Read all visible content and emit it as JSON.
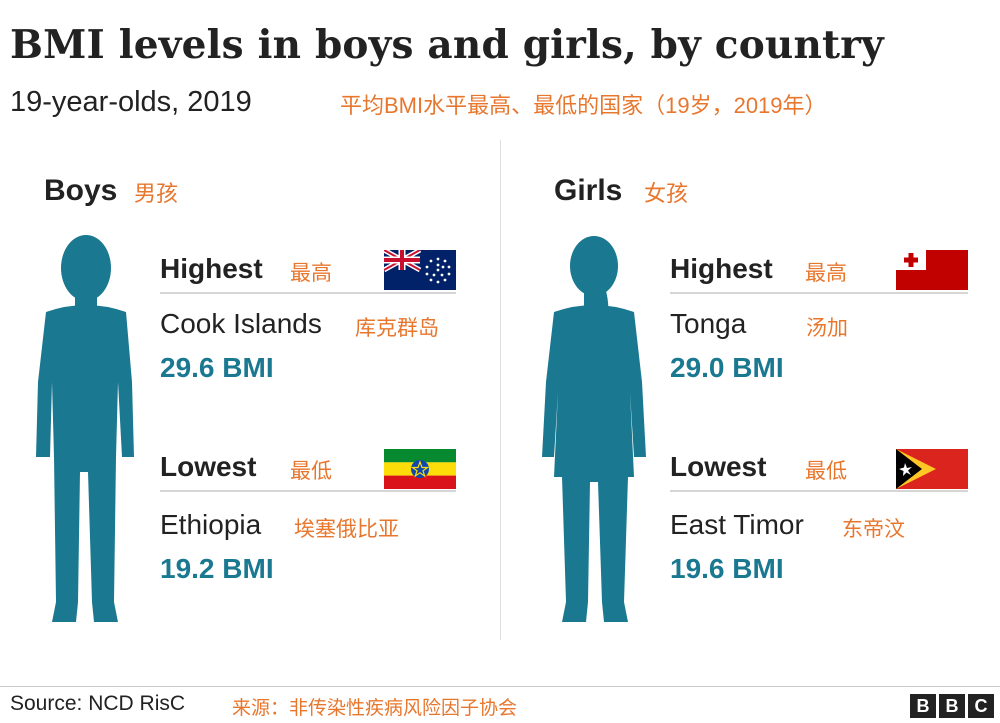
{
  "header": {
    "title": "BMI levels in boys and girls, by country",
    "subtitle": "19-year-olds, 2019",
    "subtitle_zh": "平均BMI水平最高、最低的国家（19岁，2019年）"
  },
  "colors": {
    "accent": "#e8772e",
    "value": "#1b7891",
    "silhouette": "#1b7891"
  },
  "chart_data": {
    "type": "table",
    "groups": [
      {
        "name": "Boys",
        "name_zh": "男孩",
        "highest": {
          "label": "Highest",
          "label_zh": "最高",
          "country": "Cook Islands",
          "country_zh": "库克群岛",
          "value": 29.6,
          "display": "29.6 BMI",
          "flag": "cook-islands-flag"
        },
        "lowest": {
          "label": "Lowest",
          "label_zh": "最低",
          "country": "Ethiopia",
          "country_zh": "埃塞俄比亚",
          "value": 19.2,
          "display": "19.2 BMI",
          "flag": "ethiopia-flag"
        }
      },
      {
        "name": "Girls",
        "name_zh": "女孩",
        "highest": {
          "label": "Highest",
          "label_zh": "最高",
          "country": "Tonga",
          "country_zh": "汤加",
          "value": 29.0,
          "display": "29.0 BMI",
          "flag": "tonga-flag"
        },
        "lowest": {
          "label": "Lowest",
          "label_zh": "最低",
          "country": "East Timor",
          "country_zh": "东帝汶",
          "value": 19.6,
          "display": "19.6 BMI",
          "flag": "east-timor-flag"
        }
      }
    ]
  },
  "footer": {
    "source": "Source: NCD RisC",
    "source_zh": "来源：非传染性疾病风险因子协会",
    "logo": [
      "B",
      "B",
      "C"
    ]
  }
}
